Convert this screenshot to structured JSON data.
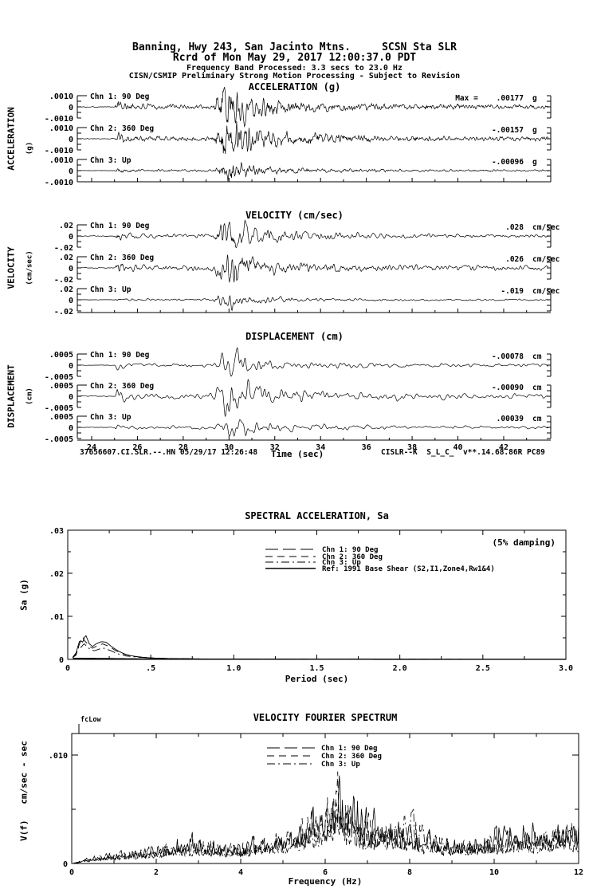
{
  "page": {
    "bg": "#ffffff",
    "fg": "#000000"
  },
  "header": {
    "line1": "Banning, Hwy 243, San Jacinto Mtns.     SCSN Sta SLR",
    "line2": "Rcrd of Mon May 29, 2017 12:00:37.0 PDT",
    "line3": "Frequency Band Processed: 3.3 secs to 23.0 Hz",
    "line4": "CISN/CSMIP Preliminary Strong Motion Processing - Subject to Revision"
  },
  "footer": {
    "left": "37656607.CI.SLR.--.HN 05/29/17 12:26:48",
    "time_label": "Time (sec)",
    "right": "CISLR--K  S_L_C_  v**.14.68.86R PC89"
  },
  "chart_data": [
    {
      "type": "line",
      "group": "time_series",
      "xlabel": "Time (sec)",
      "x_major_ticks": [
        24,
        26,
        28,
        30,
        32,
        34,
        36,
        38,
        40,
        42
      ],
      "x_range": [
        23.37,
        43.95
      ],
      "event_envelope": [
        [
          23.0,
          0.02
        ],
        [
          25.0,
          0.02
        ],
        [
          25.12,
          0.34
        ],
        [
          25.5,
          0.16
        ],
        [
          26.5,
          0.12
        ],
        [
          29.3,
          0.11
        ],
        [
          29.55,
          0.6
        ],
        [
          29.95,
          1.0
        ],
        [
          30.5,
          0.85
        ],
        [
          31.2,
          0.45
        ],
        [
          32.5,
          0.28
        ],
        [
          34.5,
          0.2
        ],
        [
          37.0,
          0.14
        ],
        [
          40.0,
          0.11
        ],
        [
          43.95,
          0.09
        ]
      ],
      "panels": [
        {
          "title": "ACCELERATION (g)",
          "side_label": "ACCELERATION",
          "side_units": "(g)",
          "scale_labels": [
            ".0010",
            "0",
            "-.0010"
          ],
          "scale_value": 0.001,
          "unit": "g",
          "traces": [
            {
              "label": "Chn 1: 90 Deg",
              "max_text": "Max =    .00177",
              "max_value": 0.00177,
              "peak_ratio": 1.77
            },
            {
              "label": "Chn 2: 360 Deg",
              "max_text": "-.00157",
              "max_value": -0.00157,
              "peak_ratio": 1.57
            },
            {
              "label": "Chn 3: Up",
              "max_text": "-.00096",
              "max_value": -0.00096,
              "peak_ratio": 0.96
            }
          ]
        },
        {
          "title": "VELOCITY (cm/sec)",
          "side_label": "VELOCITY",
          "side_units": "(cm/sec)",
          "scale_labels": [
            ".02",
            "0",
            "-.02"
          ],
          "scale_value": 0.02,
          "unit": "cm/sec",
          "traces": [
            {
              "label": "Chn 1: 90 Deg",
              "max_text": ".028",
              "max_value": 0.028,
              "peak_ratio": 1.4
            },
            {
              "label": "Chn 2: 360 Deg",
              "max_text": ".026",
              "max_value": 0.026,
              "peak_ratio": 1.3
            },
            {
              "label": "Chn 3: Up",
              "max_text": "-.019",
              "max_value": -0.019,
              "peak_ratio": 0.95
            }
          ]
        },
        {
          "title": "DISPLACEMENT (cm)",
          "side_label": "DISPLACEMENT",
          "side_units": "(cm)",
          "scale_labels": [
            ".0005",
            "0",
            "-.0005"
          ],
          "scale_value": 0.0005,
          "unit": "cm",
          "traces": [
            {
              "label": "Chn 1: 90 Deg",
              "max_text": "-.00078",
              "max_value": -0.00078,
              "peak_ratio": 1.56
            },
            {
              "label": "Chn 2: 360 Deg",
              "max_text": "-.00090",
              "max_value": -0.0009,
              "peak_ratio": 1.8
            },
            {
              "label": "Chn 3: Up",
              "max_text": ".00039",
              "max_value": 0.00039,
              "peak_ratio": 0.78
            }
          ]
        }
      ]
    },
    {
      "type": "line",
      "group": "sa",
      "title": "SPECTRAL ACCELERATION, Sa",
      "damping_note": "(5% damping)",
      "xlabel": "Period (sec)",
      "ylabel": "Sa (g)",
      "xlim": [
        0,
        3.0
      ],
      "ylim": [
        0,
        0.03
      ],
      "xticks": [
        {
          "v": 0,
          "label": "0"
        },
        {
          "v": 0.5,
          "label": ".5"
        },
        {
          "v": 1.0,
          "label": "1.0"
        },
        {
          "v": 1.5,
          "label": "1.5"
        },
        {
          "v": 2.0,
          "label": "2.0"
        },
        {
          "v": 2.5,
          "label": "2.5"
        },
        {
          "v": 3.0,
          "label": "3.0"
        }
      ],
      "yticks": [
        {
          "v": 0,
          "label": "0"
        },
        {
          "v": 0.01,
          "label": ".01"
        },
        {
          "v": 0.02,
          "label": ".02"
        },
        {
          "v": 0.03,
          "label": ".03"
        }
      ],
      "legend": [
        {
          "label": "Chn 1: 90 Deg",
          "style": "longdash"
        },
        {
          "label": "Chn 2: 360 Deg",
          "style": "dash"
        },
        {
          "label": "Chn 3: Up",
          "style": "dashdot"
        },
        {
          "label": "Ref: 1991 Base Shear (S2,I1,Zone4,Rw1&4)",
          "style": "solid"
        }
      ],
      "series": [
        {
          "name": "Chn 1: 90 Deg",
          "style": "solid",
          "points": [
            [
              0.03,
              0.0005
            ],
            [
              0.05,
              0.0015
            ],
            [
              0.065,
              0.0035
            ],
            [
              0.075,
              0.0048
            ],
            [
              0.085,
              0.0038
            ],
            [
              0.095,
              0.0042
            ],
            [
              0.105,
              0.006
            ],
            [
              0.115,
              0.005
            ],
            [
              0.13,
              0.0036
            ],
            [
              0.15,
              0.003
            ],
            [
              0.17,
              0.0036
            ],
            [
              0.2,
              0.0041
            ],
            [
              0.23,
              0.004
            ],
            [
              0.27,
              0.0028
            ],
            [
              0.31,
              0.0018
            ],
            [
              0.36,
              0.001
            ],
            [
              0.42,
              0.0006
            ],
            [
              0.5,
              0.00035
            ],
            [
              0.6,
              0.0002
            ],
            [
              0.8,
              0.0001
            ],
            [
              1.2,
              5e-05
            ],
            [
              2.0,
              3e-05
            ],
            [
              3.0,
              2e-05
            ]
          ]
        },
        {
          "name": "Chn 2: 360 Deg",
          "style": "dash",
          "points": [
            [
              0.03,
              0.0004
            ],
            [
              0.05,
              0.0012
            ],
            [
              0.065,
              0.003
            ],
            [
              0.08,
              0.0045
            ],
            [
              0.09,
              0.0052
            ],
            [
              0.1,
              0.0044
            ],
            [
              0.115,
              0.0038
            ],
            [
              0.13,
              0.003
            ],
            [
              0.15,
              0.0026
            ],
            [
              0.18,
              0.0032
            ],
            [
              0.21,
              0.0036
            ],
            [
              0.25,
              0.003
            ],
            [
              0.29,
              0.002
            ],
            [
              0.34,
              0.0012
            ],
            [
              0.4,
              0.0007
            ],
            [
              0.48,
              0.0004
            ],
            [
              0.6,
              0.0002
            ],
            [
              0.85,
              0.0001
            ],
            [
              1.3,
              5e-05
            ],
            [
              2.2,
              3e-05
            ],
            [
              3.0,
              2e-05
            ]
          ]
        },
        {
          "name": "Chn 3: Up",
          "style": "dashdot",
          "points": [
            [
              0.03,
              0.0004
            ],
            [
              0.05,
              0.001
            ],
            [
              0.06,
              0.0022
            ],
            [
              0.07,
              0.0032
            ],
            [
              0.08,
              0.0028
            ],
            [
              0.09,
              0.0033
            ],
            [
              0.1,
              0.0036
            ],
            [
              0.12,
              0.0028
            ],
            [
              0.14,
              0.0022
            ],
            [
              0.16,
              0.002
            ],
            [
              0.19,
              0.0024
            ],
            [
              0.22,
              0.0026
            ],
            [
              0.26,
              0.002
            ],
            [
              0.3,
              0.0013
            ],
            [
              0.35,
              0.0008
            ],
            [
              0.42,
              0.0005
            ],
            [
              0.52,
              0.0003
            ],
            [
              0.7,
              0.00015
            ],
            [
              1.0,
              7e-05
            ],
            [
              1.8,
              3e-05
            ],
            [
              3.0,
              2e-05
            ]
          ]
        },
        {
          "name": "Ref: 1991 Base Shear (S2,I1,Zone4,Rw1&4)",
          "style": "solid",
          "points": [
            [
              0.03,
              0.00025
            ],
            [
              0.15,
              0.00022
            ],
            [
              0.3,
              0.00015
            ],
            [
              0.5,
              0.0001
            ],
            [
              0.8,
              6e-05
            ],
            [
              1.5,
              3e-05
            ],
            [
              3.0,
              2e-05
            ]
          ]
        }
      ]
    },
    {
      "type": "line",
      "group": "fourier",
      "title": "VELOCITY FOURIER SPECTRUM",
      "fc_label": "fcLow",
      "xlabel": "Frequency (Hz)",
      "ylabel": "V(f)   cm/sec - sec",
      "xlim": [
        0,
        12
      ],
      "ylim": [
        0,
        0.012
      ],
      "xticks": [
        {
          "v": 0,
          "label": "0"
        },
        {
          "v": 2,
          "label": "2"
        },
        {
          "v": 4,
          "label": "4"
        },
        {
          "v": 6,
          "label": "6"
        },
        {
          "v": 8,
          "label": "8"
        },
        {
          "v": 10,
          "label": "10"
        },
        {
          "v": 12,
          "label": "12"
        }
      ],
      "yticks": [
        {
          "v": 0,
          "label": "0"
        },
        {
          "v": 0.01,
          "label": ".010"
        }
      ],
      "legend": [
        {
          "label": "Chn 1: 90 Deg",
          "style": "longdash"
        },
        {
          "label": "Chn 2: 360 Deg",
          "style": "dash"
        },
        {
          "label": "Chn 3: Up",
          "style": "dashdot"
        }
      ],
      "series": [
        {
          "name": "Chn 1: 90 Deg",
          "style": "solid",
          "seed": 11,
          "envelope": [
            [
              0.1,
              0.0003
            ],
            [
              0.5,
              0.0008
            ],
            [
              1.0,
              0.0012
            ],
            [
              1.6,
              0.0015
            ],
            [
              2.2,
              0.0022
            ],
            [
              2.8,
              0.003
            ],
            [
              3.2,
              0.0022
            ],
            [
              3.8,
              0.002
            ],
            [
              4.4,
              0.0028
            ],
            [
              5.0,
              0.0035
            ],
            [
              5.6,
              0.005
            ],
            [
              6.0,
              0.006
            ],
            [
              6.35,
              0.0085
            ],
            [
              6.7,
              0.0065
            ],
            [
              7.0,
              0.0045
            ],
            [
              7.35,
              0.0062
            ],
            [
              7.7,
              0.0048
            ],
            [
              8.1,
              0.0035
            ],
            [
              8.6,
              0.0028
            ],
            [
              9.0,
              0.0024
            ],
            [
              9.5,
              0.0028
            ],
            [
              10.0,
              0.0032
            ],
            [
              10.4,
              0.0048
            ],
            [
              10.8,
              0.0042
            ],
            [
              11.2,
              0.0038
            ],
            [
              11.6,
              0.0052
            ],
            [
              12.0,
              0.004
            ]
          ]
        },
        {
          "name": "Chn 2: 360 Deg",
          "style": "dash",
          "seed": 23,
          "envelope": [
            [
              0.1,
              0.0003
            ],
            [
              0.5,
              0.0007
            ],
            [
              1.0,
              0.0011
            ],
            [
              1.8,
              0.0016
            ],
            [
              2.4,
              0.0022
            ],
            [
              3.0,
              0.0026
            ],
            [
              3.6,
              0.002
            ],
            [
              4.2,
              0.0024
            ],
            [
              4.8,
              0.003
            ],
            [
              5.4,
              0.0048
            ],
            [
              5.8,
              0.0068
            ],
            [
              6.2,
              0.0095
            ],
            [
              6.5,
              0.008
            ],
            [
              6.8,
              0.006
            ],
            [
              7.2,
              0.0045
            ],
            [
              7.6,
              0.0038
            ],
            [
              8.0,
              0.0032
            ],
            [
              8.5,
              0.0026
            ],
            [
              9.0,
              0.0022
            ],
            [
              9.6,
              0.0026
            ],
            [
              10.2,
              0.003
            ],
            [
              10.8,
              0.0034
            ],
            [
              11.4,
              0.0042
            ],
            [
              12.0,
              0.0036
            ]
          ]
        },
        {
          "name": "Chn 3: Up",
          "style": "dashdot",
          "seed": 37,
          "envelope": [
            [
              0.1,
              0.0002
            ],
            [
              0.5,
              0.0006
            ],
            [
              1.0,
              0.001
            ],
            [
              1.8,
              0.0014
            ],
            [
              2.4,
              0.0018
            ],
            [
              3.0,
              0.0022
            ],
            [
              3.8,
              0.0018
            ],
            [
              4.6,
              0.0024
            ],
            [
              5.2,
              0.0032
            ],
            [
              5.7,
              0.0045
            ],
            [
              6.1,
              0.006
            ],
            [
              6.5,
              0.0052
            ],
            [
              7.0,
              0.0038
            ],
            [
              7.5,
              0.0042
            ],
            [
              8.0,
              0.0048
            ],
            [
              8.3,
              0.0052
            ],
            [
              8.7,
              0.0035
            ],
            [
              9.2,
              0.0024
            ],
            [
              9.8,
              0.0028
            ],
            [
              10.4,
              0.0026
            ],
            [
              11.0,
              0.003
            ],
            [
              11.5,
              0.0036
            ],
            [
              12.0,
              0.003
            ]
          ]
        }
      ]
    }
  ]
}
